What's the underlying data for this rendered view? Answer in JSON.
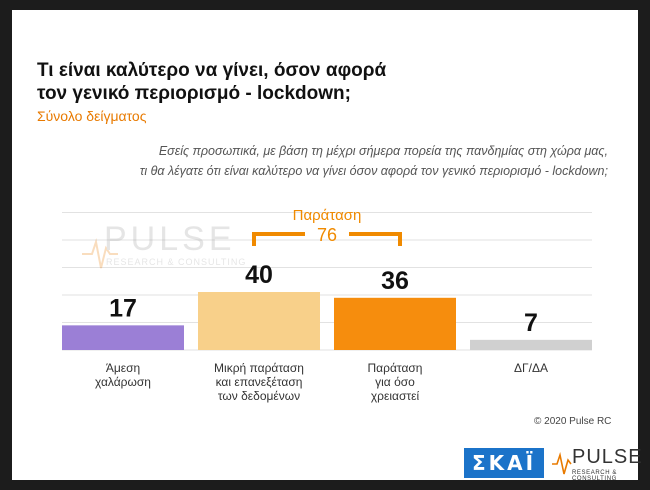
{
  "header": {
    "title": "Τι είναι καλύτερο να γίνει, όσον αφορά\nτον γενικό περιορισμό - lockdown;",
    "subtitle": "Σύνολο δείγματος",
    "question": "Εσείς προσωπικά, με βάση τη μέχρι σήμερα πορεία της πανδημίας στη χώρα μας,\nτι θα λέγατε ότι είναι καλύτερο να γίνει όσον αφορά τον γενικό περιορισμό - lockdown;"
  },
  "watermark": {
    "word": "PULSE",
    "tagline": "RESEARCH & CONSULTING"
  },
  "chart_data": {
    "type": "bar",
    "categories": [
      "Άμεση\nχαλάρωση",
      "Μικρή παράταση\nκαι επανεξέταση\nτων δεδομένων",
      "Παράταση\nγια όσο\nχρειαστεί",
      "ΔΓ/ΔΑ"
    ],
    "values": [
      17,
      40,
      36,
      7
    ],
    "colors": [
      "#9b7fd6",
      "#f8d08a",
      "#f68d0d",
      "#d0d0d0"
    ],
    "ylim": [
      0,
      40
    ],
    "grid": true,
    "annotation": {
      "label": "Παράταση",
      "value": "76",
      "spans": [
        1,
        2
      ],
      "color": "#f08a00"
    }
  },
  "footer": {
    "copyright": "© 2020 Pulse RC",
    "skai_logo": "ΣΚΑΪ",
    "pulse_word": "PULSE",
    "pulse_tagline": "RESEARCH & CONSULTING"
  }
}
